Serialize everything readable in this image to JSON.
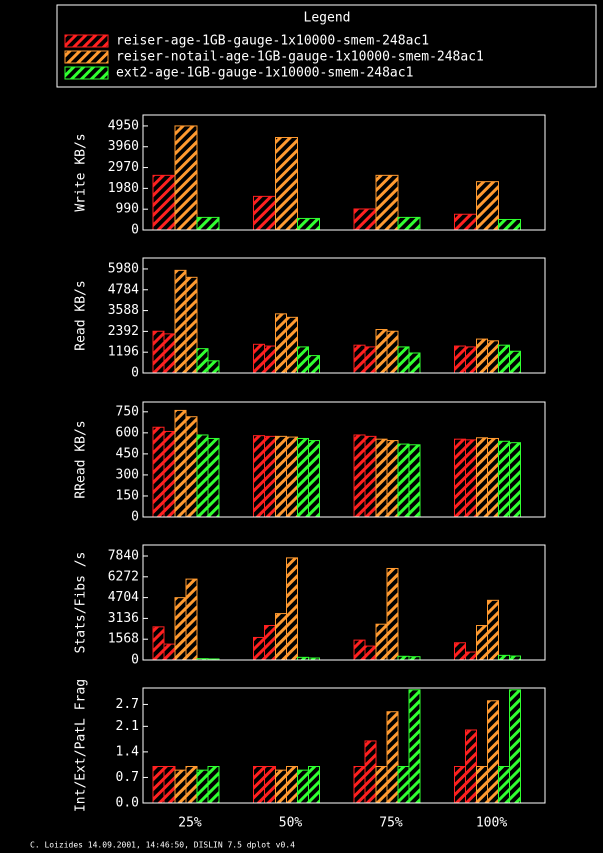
{
  "chart_data": {
    "type": "bar",
    "legend_title": "Legend",
    "legend": [
      {
        "name": "reiser-age-1GB-gauge-1x10000-smem-248ac1",
        "color": "#ff2020"
      },
      {
        "name": "reiser-notail-age-1GB-gauge-1x10000-smem-248ac1",
        "color": "#ff9a30"
      },
      {
        "name": "ext2-age-1GB-gauge-1x10000-smem-248ac1",
        "color": "#30ff30"
      }
    ],
    "categories": [
      "25%",
      "50%",
      "75%",
      "100%"
    ],
    "footer": "C. Loizides 14.09.2001, 14:46:50, DISLIN 7.5 dplot v0.4",
    "panels": [
      {
        "ylabel": "Write KB/s",
        "ylim": [
          0,
          5470
        ],
        "yticks": [
          0,
          990,
          1980,
          2970,
          3960,
          4950
        ],
        "series": [
          {
            "values": [
              [
                2600
              ],
              [
                1600
              ],
              [
                1000
              ],
              [
                750
              ]
            ]
          },
          {
            "values": [
              [
                4950
              ],
              [
                4400
              ],
              [
                2600
              ],
              [
                2300
              ]
            ]
          },
          {
            "values": [
              [
                600
              ],
              [
                550
              ],
              [
                600
              ],
              [
                500
              ]
            ]
          }
        ]
      },
      {
        "ylabel": "Read KB/s",
        "ylim": [
          0,
          6610
        ],
        "yticks": [
          0,
          1196,
          2392,
          3588,
          4784,
          5980
        ],
        "series": [
          {
            "values": [
              [
                2400,
                2250
              ],
              [
                1650,
                1550
              ],
              [
                1600,
                1500
              ],
              [
                1550,
                1500
              ]
            ]
          },
          {
            "values": [
              [
                5900,
                5500
              ],
              [
                3400,
                3200
              ],
              [
                2500,
                2400
              ],
              [
                1950,
                1850
              ]
            ]
          },
          {
            "values": [
              [
                1400,
                700
              ],
              [
                1500,
                1000
              ],
              [
                1500,
                1150
              ],
              [
                1600,
                1250
              ]
            ]
          }
        ]
      },
      {
        "ylabel": "RRead KB/s",
        "ylim": [
          0,
          820
        ],
        "yticks": [
          0,
          150,
          300,
          450,
          600,
          750
        ],
        "series": [
          {
            "values": [
              [
                640,
                610
              ],
              [
                580,
                575
              ],
              [
                585,
                575
              ],
              [
                555,
                550
              ]
            ]
          },
          {
            "values": [
              [
                760,
                715
              ],
              [
                575,
                570
              ],
              [
                555,
                545
              ],
              [
                565,
                560
              ]
            ]
          },
          {
            "values": [
              [
                585,
                560
              ],
              [
                560,
                545
              ],
              [
                520,
                515
              ],
              [
                540,
                530
              ]
            ]
          }
        ]
      },
      {
        "ylabel": "Stats/Fibs /s",
        "ylim": [
          0,
          8670
        ],
        "yticks": [
          0,
          1568,
          3136,
          4704,
          6272,
          7840
        ],
        "series": [
          {
            "values": [
              [
                2500,
                1200
              ],
              [
                1700,
                2600
              ],
              [
                1500,
                1050
              ],
              [
                1300,
                600
              ]
            ]
          },
          {
            "values": [
              [
                4700,
                6100
              ],
              [
                3500,
                7700
              ],
              [
                2700,
                6900
              ],
              [
                2600,
                4500
              ]
            ]
          },
          {
            "values": [
              [
                100,
                80
              ],
              [
                200,
                150
              ],
              [
                280,
                250
              ],
              [
                350,
                300
              ]
            ]
          }
        ]
      },
      {
        "ylabel": "Int/Ext/PatL Frag",
        "ylim": [
          0,
          3.15
        ],
        "yticks": [
          {
            "value": 0,
            "label": "0.0"
          },
          0.7,
          1.4,
          2.1,
          2.7
        ],
        "series": [
          {
            "values": [
              [
                1.0,
                1.0
              ],
              [
                1.0,
                1.0
              ],
              [
                1.0,
                1.7
              ],
              [
                1.0,
                2.0
              ]
            ]
          },
          {
            "values": [
              [
                0.9,
                1.0
              ],
              [
                0.9,
                1.0
              ],
              [
                1.0,
                2.5
              ],
              [
                1.0,
                2.8
              ]
            ]
          },
          {
            "values": [
              [
                0.9,
                1.0
              ],
              [
                0.9,
                1.0
              ],
              [
                1.0,
                3.1
              ],
              [
                1.0,
                3.1
              ]
            ]
          }
        ]
      }
    ]
  }
}
